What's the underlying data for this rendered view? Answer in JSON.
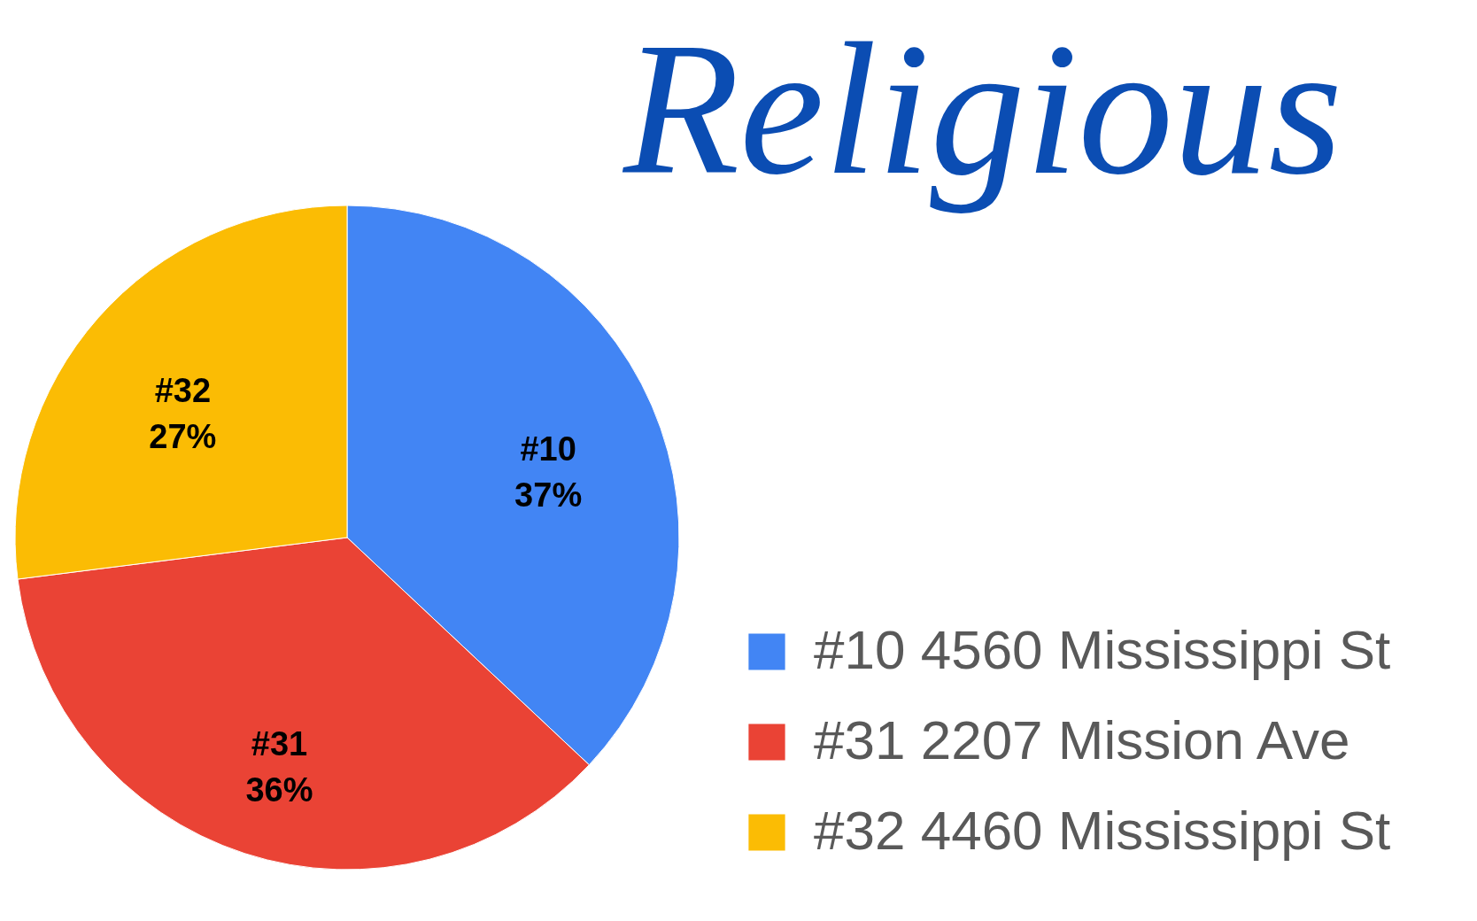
{
  "chart_data": {
    "type": "pie",
    "title": "Religious",
    "categories": [
      "#10 4560 Mississippi St",
      "#31 2207 Mission Ave",
      "#32 4460 Mississippi St"
    ],
    "values": [
      37,
      36,
      27
    ],
    "colors": [
      "#4285f4",
      "#ea4335",
      "#fbbc04"
    ],
    "value_labels": [
      "#10\n37%",
      "#31\n36%",
      "#32\n27%"
    ],
    "legend": "bottom right"
  }
}
